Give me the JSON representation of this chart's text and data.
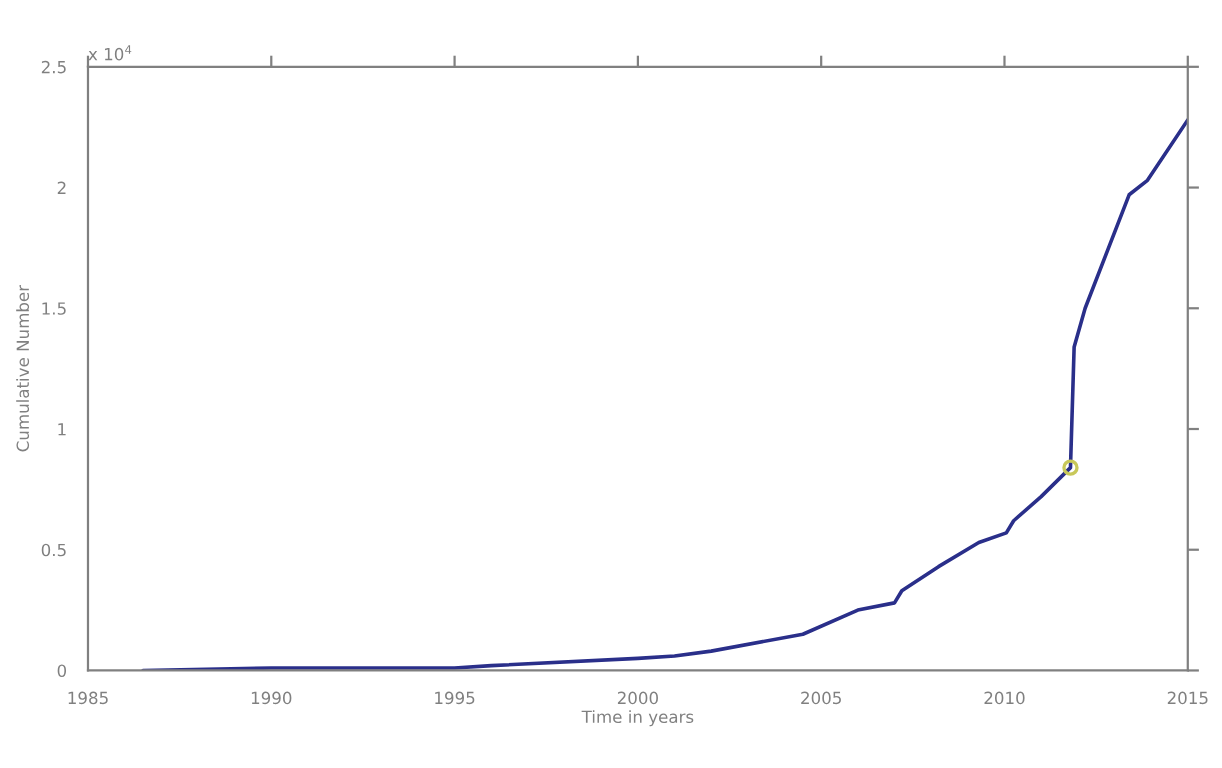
{
  "chart_data": {
    "type": "line",
    "xlabel": "Time in years",
    "ylabel": "Cumulative Number",
    "annotations": [
      "x 10$^{4}$"
    ],
    "xlim": [
      1985,
      2015
    ],
    "xticks": [
      1985,
      1990,
      1995,
      2000,
      2005,
      2010,
      2015
    ],
    "ylim": [
      0,
      2.5
    ],
    "yticks": [
      0,
      0.5,
      1,
      1.5,
      2,
      2.5
    ],
    "grid": false,
    "legend": false,
    "series": [
      {
        "color": "#2a2f8a",
        "marker": "none",
        "line_style": "solid",
        "x": [
          1986.5,
          1990,
          1995,
          1996,
          2000,
          2001,
          2002,
          2004.5,
          2006,
          2007,
          2007.2,
          2008.2,
          2009.3,
          2010.05,
          2010.25,
          2011,
          2011.8,
          2011.9,
          2012.2,
          2013.4,
          2013.9,
          2015
        ],
        "values": [
          0,
          0.01,
          0.01,
          0.02,
          0.05,
          0.06,
          0.08,
          0.15,
          0.25,
          0.28,
          0.33,
          0.43,
          0.53,
          0.57,
          0.62,
          0.72,
          0.84,
          1.34,
          1.5,
          1.97,
          2.03,
          2.28
        ]
      },
      {
        "type": "scatter",
        "color": "#c8c85a",
        "marker": "circle",
        "x": [
          2011.8
        ],
        "values": [
          0.84
        ]
      }
    ]
  }
}
